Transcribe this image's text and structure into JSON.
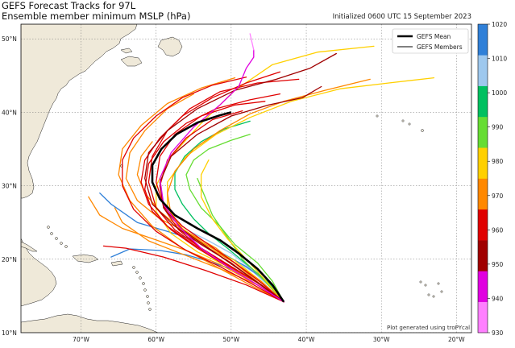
{
  "header": {
    "title": "GEFS Forecast Tracks for 97L",
    "subtitle": "Ensemble member minimum MSLP (hPa)",
    "initialized": "Initialized 0600 UTC 15 September 2023"
  },
  "credit": "Plot generated using troPYcal",
  "legend": {
    "mean_label": "GEFS Mean",
    "members_label": "GEFS Members"
  },
  "map": {
    "lon_range": [
      -78,
      -18
    ],
    "lat_range": [
      10,
      52
    ],
    "lon_ticks": [
      "70°W",
      "60°W",
      "50°W",
      "40°W",
      "30°W",
      "20°W"
    ],
    "lat_ticks": [
      "10°N",
      "20°N",
      "30°N",
      "40°N",
      "50°N"
    ],
    "land_color": "#efe9d9",
    "ocean_color": "#ffffff"
  },
  "colorbar": {
    "ticks": [
      "930",
      "940",
      "950",
      "960",
      "970",
      "980",
      "990",
      "1000",
      "1010",
      "1020"
    ],
    "colors": [
      "#ff80ff",
      "#e000e0",
      "#a00000",
      "#e00000",
      "#ff8800",
      "#ffd000",
      "#66dd33",
      "#00c060",
      "#9ec8ee",
      "#3080d8"
    ]
  },
  "chart_data": {
    "type": "line",
    "mean_track": {
      "name": "GEFS Mean",
      "lon": [
        -43.0,
        -44.5,
        -46.5,
        -49.0,
        -51.5,
        -54.5,
        -57.5,
        -59.5,
        -60.5,
        -60.5,
        -59.3,
        -57.3,
        -54.5,
        -51.5,
        -50.0
      ],
      "lat": [
        14.2,
        16.5,
        18.7,
        20.8,
        22.6,
        24.2,
        26.0,
        28.2,
        30.5,
        32.8,
        35.0,
        37.0,
        38.6,
        39.6,
        40.0
      ]
    },
    "member_tracks": [
      {
        "color": "#9ec8ee",
        "lon": [
          -43.0,
          -45.0,
          -47.5,
          -50.0,
          -53.0,
          -55.5
        ],
        "lat": [
          14.2,
          16.5,
          18.8,
          20.8,
          22.5,
          23.8
        ]
      },
      {
        "color": "#9ec8ee",
        "lon": [
          -43.0,
          -44.8,
          -47.0,
          -49.8,
          -52.5
        ],
        "lat": [
          14.2,
          16.2,
          18.2,
          20.0,
          21.0
        ]
      },
      {
        "color": "#3080d8",
        "lon": [
          -43.0,
          -46.0,
          -49.5,
          -53.0,
          -56.0,
          -59.5,
          -63.5,
          -66.0
        ],
        "lat": [
          14.2,
          16.5,
          18.5,
          19.7,
          20.6,
          21.2,
          21.4,
          20.3
        ]
      },
      {
        "color": "#3080d8",
        "lon": [
          -43.0,
          -45.0,
          -48.0,
          -51.5,
          -54.5,
          -58.5,
          -62.5,
          -66.0,
          -67.5
        ],
        "lat": [
          14.2,
          16.8,
          19.0,
          21.0,
          22.5,
          23.8,
          25.0,
          27.5,
          29.0
        ]
      },
      {
        "color": "#00c060",
        "lon": [
          -43.0,
          -45.0,
          -47.8,
          -50.5,
          -53.0,
          -55.0,
          -56.5,
          -57.5,
          -57.5,
          -56.2,
          -54.0,
          -51.0,
          -47.5
        ],
        "lat": [
          14.2,
          16.8,
          19.2,
          21.5,
          23.5,
          25.5,
          27.5,
          29.5,
          31.7,
          34.0,
          36.0,
          37.7,
          38.8
        ]
      },
      {
        "color": "#66dd33",
        "lon": [
          -43.0,
          -44.5,
          -46.5,
          -49.5,
          -51.5,
          -54.0,
          -55.5,
          -56.0,
          -55.0,
          -53.0,
          -50.0,
          -47.5
        ],
        "lat": [
          14.2,
          17.0,
          19.5,
          22.0,
          24.5,
          27.0,
          29.5,
          31.5,
          33.5,
          35.0,
          36.2,
          37.0
        ]
      },
      {
        "color": "#66dd33",
        "lon": [
          -43.0,
          -45.5,
          -48.5,
          -50.5,
          -52.5,
          -53.5,
          -54.5
        ],
        "lat": [
          14.2,
          17.0,
          20.0,
          23.0,
          26.0,
          28.5,
          31.0
        ]
      },
      {
        "color": "#ffd000",
        "lon": [
          -43.0,
          -46.0,
          -49.5,
          -53.5,
          -56.5,
          -58.5,
          -58.5,
          -56.0,
          -52.0,
          -47.5,
          -42.0,
          -35.5,
          -29.0,
          -23.0
        ],
        "lat": [
          14.2,
          17.0,
          19.8,
          22.0,
          24.2,
          27.0,
          30.5,
          34.0,
          37.0,
          39.3,
          41.5,
          43.2,
          44.0,
          44.7
        ]
      },
      {
        "color": "#ffd000",
        "lon": [
          -43.0,
          -46.0,
          -50.0,
          -54.5,
          -58.0,
          -60.0,
          -60.0,
          -58.0,
          -54.0,
          -49.5,
          -44.5,
          -38.5,
          -31.0
        ],
        "lat": [
          14.2,
          16.5,
          18.8,
          21.0,
          23.5,
          26.5,
          30.0,
          34.0,
          38.5,
          43.0,
          46.5,
          48.2,
          49.0
        ]
      },
      {
        "color": "#ffd000",
        "lon": [
          -43.0,
          -45.5,
          -48.0,
          -50.5,
          -52.5,
          -54.0,
          -54.0,
          -53.0
        ],
        "lat": [
          14.2,
          17.2,
          20.0,
          22.8,
          25.5,
          28.5,
          31.5,
          33.5
        ]
      },
      {
        "color": "#ff8800",
        "lon": [
          -43.0,
          -47.0,
          -51.5,
          -56.0,
          -60.5,
          -64.5,
          -67.5,
          -69.0
        ],
        "lat": [
          14.2,
          16.8,
          19.3,
          21.2,
          22.8,
          24.2,
          26.0,
          28.5
        ]
      },
      {
        "color": "#ff8800",
        "lon": [
          -43.0,
          -47.5,
          -52.0,
          -56.5,
          -60.5,
          -63.5,
          -65.0,
          -64.5,
          -62.0,
          -58.5,
          -54.0,
          -49.5
        ],
        "lat": [
          14.2,
          16.5,
          19.0,
          21.5,
          24.5,
          28.0,
          31.5,
          35.0,
          38.2,
          41.2,
          43.3,
          44.7
        ]
      },
      {
        "color": "#ff8800",
        "lon": [
          -43.0,
          -46.5,
          -51.0,
          -56.0,
          -61.0,
          -64.5,
          -65.5
        ],
        "lat": [
          14.2,
          16.5,
          18.5,
          20.5,
          22.5,
          25.0,
          27.0
        ]
      },
      {
        "color": "#ff8800",
        "lon": [
          -43.0,
          -46.0,
          -49.5,
          -53.0,
          -56.5,
          -59.5,
          -61.5,
          -62.5,
          -62.0,
          -60.5
        ],
        "lat": [
          14.2,
          16.8,
          19.5,
          21.8,
          24.0,
          26.5,
          29.0,
          31.5,
          34.0,
          36.0
        ]
      },
      {
        "color": "#ff8800",
        "lon": [
          -43.0,
          -46.0,
          -49.0,
          -52.0,
          -55.5,
          -59.5,
          -62.5,
          -64.0,
          -63.5,
          -61.5,
          -58.5,
          -55.0
        ],
        "lat": [
          14.2,
          16.5,
          19.0,
          21.5,
          23.5,
          25.5,
          28.0,
          31.0,
          34.5,
          37.5,
          40.5,
          42.5
        ]
      },
      {
        "color": "#ff8800",
        "lon": [
          -43.0,
          -46.0,
          -49.5,
          -53.0,
          -56.0,
          -58.0,
          -58.5,
          -57.5,
          -55.0,
          -51.5,
          -47.5,
          -43.0,
          -37.5,
          -31.5
        ],
        "lat": [
          14.2,
          17.0,
          19.5,
          21.5,
          23.5,
          26.0,
          29.0,
          32.0,
          35.0,
          37.5,
          39.8,
          41.5,
          43.0,
          44.5
        ]
      },
      {
        "color": "#e00000",
        "lon": [
          -43.0,
          -46.5,
          -51.0,
          -55.0,
          -58.5,
          -61.0,
          -62.0,
          -61.5,
          -59.5,
          -56.5,
          -52.5,
          -48.0,
          -43.5
        ],
        "lat": [
          14.2,
          16.8,
          19.5,
          22.0,
          24.5,
          27.5,
          30.5,
          33.5,
          36.5,
          39.5,
          42.0,
          44.0,
          45.5
        ]
      },
      {
        "color": "#e00000",
        "lon": [
          -43.0,
          -46.0,
          -50.0,
          -54.0,
          -57.5,
          -60.0,
          -61.0,
          -60.5,
          -58.5,
          -55.5,
          -51.5,
          -46.5,
          -41.0
        ],
        "lat": [
          14.2,
          16.5,
          19.0,
          21.5,
          24.0,
          27.0,
          30.5,
          34.0,
          37.5,
          40.5,
          42.8,
          44.0,
          44.5
        ]
      },
      {
        "color": "#e00000",
        "lon": [
          -43.0,
          -47.0,
          -51.5,
          -56.0,
          -60.0,
          -63.0,
          -64.5,
          -64.5,
          -63.0,
          -60.0,
          -56.5,
          -52.5,
          -48.0
        ],
        "lat": [
          14.2,
          16.5,
          19.0,
          21.2,
          23.8,
          26.8,
          30.0,
          33.5,
          36.5,
          39.5,
          42.0,
          43.7,
          44.8
        ]
      },
      {
        "color": "#e00000",
        "lon": [
          -43.0,
          -48.0,
          -53.5,
          -59.0,
          -64.0,
          -67.0
        ],
        "lat": [
          14.2,
          16.5,
          18.5,
          20.3,
          21.5,
          21.8
        ]
      },
      {
        "color": "#e00000",
        "lon": [
          -43.0,
          -46.0,
          -50.0,
          -54.0,
          -57.0,
          -59.0,
          -59.5,
          -58.5,
          -56.0,
          -52.5,
          -48.5
        ],
        "lat": [
          14.2,
          16.5,
          19.0,
          21.5,
          24.0,
          27.0,
          30.0,
          33.5,
          36.5,
          39.0,
          40.2
        ]
      },
      {
        "color": "#e00000",
        "lon": [
          -43.0,
          -46.5,
          -50.5,
          -54.5,
          -58.0,
          -60.5,
          -61.5,
          -61.0,
          -59.0,
          -56.0,
          -52.0,
          -47.5,
          -43.5
        ],
        "lat": [
          14.2,
          16.5,
          19.0,
          21.5,
          24.0,
          26.5,
          29.5,
          33.0,
          36.0,
          38.5,
          40.5,
          41.7,
          42.5
        ]
      },
      {
        "color": "#e00000",
        "lon": [
          -43.0,
          -46.0,
          -49.5,
          -53.0,
          -56.5,
          -59.0,
          -60.0,
          -59.5,
          -57.5,
          -54.0,
          -49.5,
          -45.5
        ],
        "lat": [
          14.2,
          16.8,
          19.5,
          22.0,
          24.5,
          27.2,
          30.5,
          34.0,
          37.0,
          39.5,
          41.0,
          41.5
        ]
      },
      {
        "color": "#a00000",
        "lon": [
          -43.0,
          -46.5,
          -50.0,
          -54.0,
          -57.5,
          -60.5,
          -61.5,
          -61.0,
          -58.5,
          -54.5,
          -49.5,
          -44.0,
          -39.5,
          -36.0
        ],
        "lat": [
          14.2,
          16.8,
          19.5,
          22.0,
          24.5,
          27.5,
          31.0,
          34.5,
          37.5,
          40.5,
          43.0,
          44.5,
          46.0,
          48.0
        ]
      },
      {
        "color": "#a00000",
        "lon": [
          -43.0,
          -46.0,
          -49.5,
          -53.0,
          -56.5,
          -59.0,
          -59.5,
          -58.0,
          -54.5,
          -50.0,
          -45.0,
          -40.5,
          -38.0
        ],
        "lat": [
          14.2,
          16.5,
          19.0,
          21.5,
          24.0,
          27.0,
          30.5,
          34.0,
          37.0,
          39.5,
          41.0,
          42.0,
          43.5
        ]
      },
      {
        "color": "#e000e0",
        "lon": [
          -43.0,
          -46.5,
          -50.5,
          -54.0,
          -57.0,
          -59.0,
          -59.5,
          -58.0,
          -55.0,
          -51.5,
          -49.0,
          -48.0,
          -47.0,
          -47.0
        ],
        "lat": [
          14.2,
          16.5,
          19.0,
          21.5,
          24.5,
          27.5,
          31.0,
          34.5,
          38.0,
          41.0,
          43.5,
          46.0,
          47.5,
          48.5
        ]
      },
      {
        "color": "#ff80ff",
        "lon": [
          -47.0,
          -47.5
        ],
        "lat": [
          48.5,
          50.7
        ]
      }
    ]
  }
}
